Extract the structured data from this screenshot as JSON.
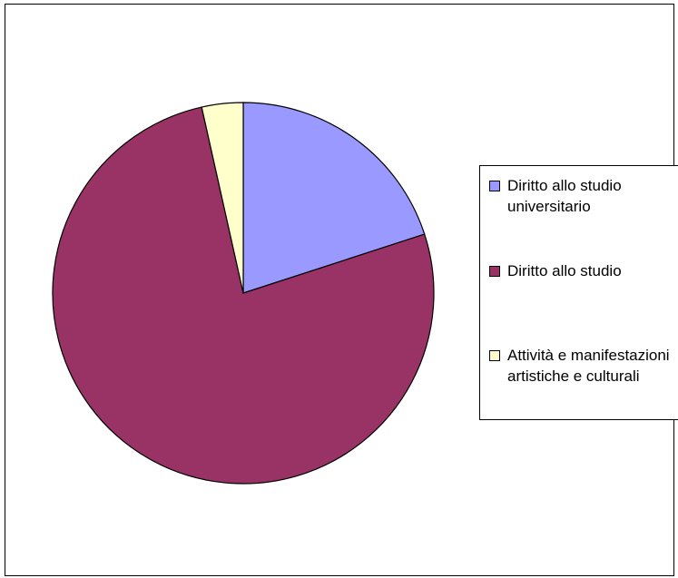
{
  "chart_data": {
    "type": "pie",
    "categories": [
      "Diritto allo studio universitario",
      "Diritto allo studio",
      "Attività e manifestazioni artistiche e culturali"
    ],
    "values": [
      20.0,
      76.5,
      3.5
    ],
    "colors": [
      "#9999ff",
      "#993366",
      "#ffffcc"
    ],
    "start_angle_deg": 0,
    "direction": "clockwise",
    "legend_position": "right"
  },
  "legend": {
    "items": [
      {
        "label": "Diritto allo studio universitario",
        "color": "#9999ff"
      },
      {
        "label": "Diritto allo studio",
        "color": "#993366"
      },
      {
        "label": "Attività e manifestazioni artistiche e culturali",
        "color": "#ffffcc"
      }
    ]
  }
}
